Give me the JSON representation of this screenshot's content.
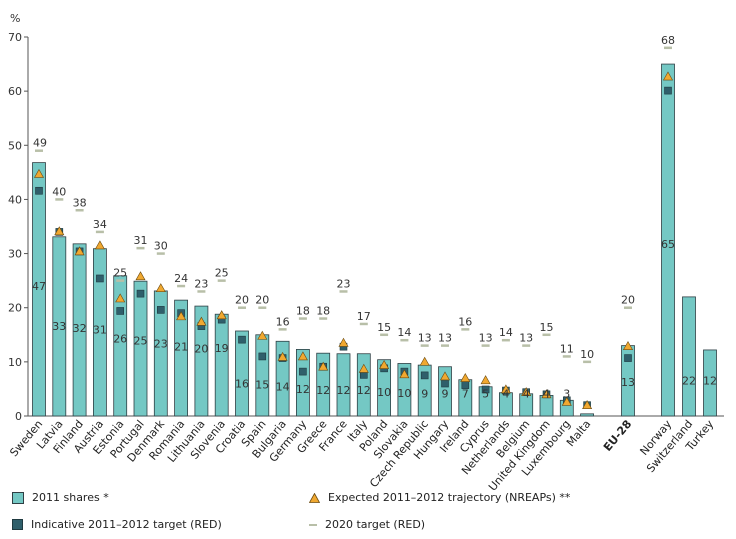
{
  "chart_data": {
    "type": "bar",
    "ylabel": "%",
    "ylim": [
      0,
      70
    ],
    "yticks": [
      0,
      10,
      20,
      30,
      40,
      50,
      60,
      70
    ],
    "colors": {
      "bar": "#74c8c4",
      "bar_border": "#2f3f44",
      "indicative": "#2f5f6b",
      "expected": "#f0a830",
      "target": "#b8bfa8"
    },
    "highlight": [
      "EU-28"
    ],
    "categories": [
      "Sweden",
      "Latvia",
      "Finland",
      "Austria",
      "Estonia",
      "Portugal",
      "Denmark",
      "Romania",
      "Lithuania",
      "Slovenia",
      "Croatia",
      "Spain",
      "Bulgaria",
      "Germany",
      "Greece",
      "France",
      "Italy",
      "Poland",
      "Slovakia",
      "Czech Republic",
      "Hungary",
      "Ireland",
      "Cyprus",
      "Netherlands",
      "Belgium",
      "United Kingdom",
      "Luxembourg",
      "Malta",
      "EU-28",
      "Norway",
      "Switzerland",
      "Turkey"
    ],
    "series": [
      {
        "name": "2011 shares *",
        "values": [
          46.8,
          33.1,
          31.8,
          30.9,
          25.9,
          24.9,
          23.1,
          21.4,
          20.3,
          18.8,
          15.7,
          15.0,
          13.8,
          12.3,
          11.6,
          11.5,
          11.5,
          10.4,
          9.7,
          9.4,
          9.1,
          6.7,
          5.4,
          4.3,
          4.1,
          3.8,
          2.9,
          0.4,
          13.0,
          65.0,
          22.0,
          12.2
        ],
        "labels": [
          "47",
          "33",
          "32",
          "31",
          "26",
          "25",
          "23",
          "21",
          "20",
          "19",
          "16",
          "15",
          "14",
          "12",
          "12",
          "12",
          "12",
          "10",
          "10",
          "9",
          "9",
          "7",
          "5",
          "4",
          "4",
          "4",
          "3",
          "",
          "13",
          "65",
          "22",
          "12"
        ]
      },
      {
        "name": "Expected 2011–2012 trajectory (NREAPs) **",
        "values": [
          44.7,
          34.1,
          30.4,
          31.5,
          21.7,
          25.8,
          23.6,
          18.4,
          17.4,
          18.6,
          null,
          14.8,
          10.9,
          11.0,
          9.1,
          13.5,
          8.7,
          9.4,
          7.7,
          10.0,
          7.3,
          7.0,
          6.6,
          4.9,
          4.4,
          4.0,
          2.6,
          2.0,
          12.9,
          62.7,
          null,
          null
        ]
      },
      {
        "name": "Indicative 2011–2012 target (RED)",
        "values": [
          41.6,
          34.0,
          30.4,
          25.4,
          19.4,
          22.6,
          19.6,
          19.0,
          16.6,
          17.8,
          14.1,
          11.0,
          10.7,
          8.2,
          9.1,
          12.8,
          7.6,
          8.8,
          8.2,
          7.5,
          6.0,
          5.7,
          4.9,
          4.7,
          4.4,
          4.0,
          2.9,
          2.0,
          10.7,
          60.1,
          null,
          null
        ]
      },
      {
        "name": "2020 target (RED)",
        "values": [
          49,
          40,
          38,
          34,
          25,
          31,
          30,
          24,
          23,
          25,
          20,
          20,
          16,
          18,
          18,
          23,
          17,
          15,
          14,
          13,
          13,
          16,
          13,
          14,
          13,
          15,
          11,
          10,
          20,
          68,
          null,
          null
        ]
      }
    ]
  },
  "legend": {
    "shares": "2011 shares *",
    "expected": "Expected 2011–2012 trajectory (NREAPs) **",
    "indicative": "Indicative 2011–2012 target (RED)",
    "target": "2020 target (RED)"
  }
}
